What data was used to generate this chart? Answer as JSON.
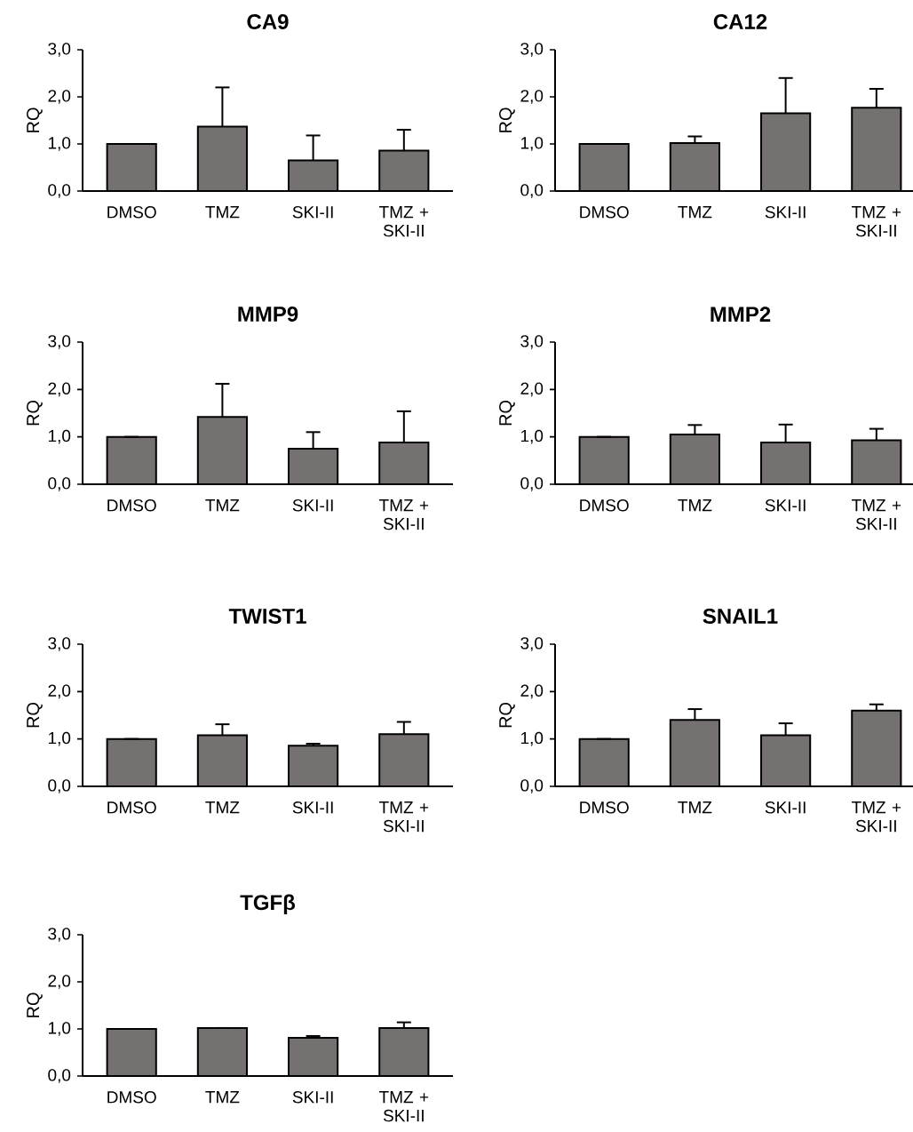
{
  "chart_data": [
    {
      "type": "bar",
      "title": "CA9",
      "ylabel": "RQ",
      "categories": [
        "DMSO",
        "TMZ",
        "SKI-II",
        "TMZ + SKI-II"
      ],
      "values": [
        1.0,
        1.37,
        0.65,
        0.86
      ],
      "errors": [
        null,
        0.83,
        0.53,
        0.44
      ],
      "color": "#767171",
      "ylim": [
        0,
        3
      ],
      "yticks": [
        {
          "value": 0,
          "label": "0,0"
        },
        {
          "value": 1,
          "label": "1,0"
        },
        {
          "value": 2,
          "label": "2,0"
        },
        {
          "value": 3,
          "label": "3,0"
        }
      ]
    },
    {
      "type": "bar",
      "title": "CA12",
      "ylabel": "RQ",
      "categories": [
        "DMSO",
        "TMZ",
        "SKI-II",
        "TMZ + SKI-II"
      ],
      "values": [
        1.0,
        1.02,
        1.65,
        1.77
      ],
      "errors": [
        null,
        0.14,
        0.75,
        0.4
      ],
      "color": "#767171",
      "ylim": [
        0,
        3
      ],
      "yticks": [
        {
          "value": 0,
          "label": "0,0"
        },
        {
          "value": 1,
          "label": "1,0"
        },
        {
          "value": 2,
          "label": "2,0"
        },
        {
          "value": 3,
          "label": "3,0"
        }
      ]
    },
    {
      "type": "bar",
      "title": "MMP9",
      "ylabel": "RQ",
      "categories": [
        "DMSO",
        "TMZ",
        "SKI-II",
        "TMZ + SKI-II"
      ],
      "values": [
        1.0,
        1.42,
        0.75,
        0.88
      ],
      "errors": [
        null,
        0.7,
        0.35,
        0.66
      ],
      "color": "#767171",
      "ylim": [
        0,
        3
      ],
      "yticks": [
        {
          "value": 0,
          "label": "0,0"
        },
        {
          "value": 1,
          "label": "1,0"
        },
        {
          "value": 2,
          "label": "2,0"
        },
        {
          "value": 3,
          "label": "3,0"
        }
      ]
    },
    {
      "type": "bar",
      "title": "MMP2",
      "ylabel": "RQ",
      "categories": [
        "DMSO",
        "TMZ",
        "SKI-II",
        "TMZ + SKI-II"
      ],
      "values": [
        1.0,
        1.05,
        0.88,
        0.93
      ],
      "errors": [
        null,
        0.2,
        0.38,
        0.24
      ],
      "color": "#767171",
      "ylim": [
        0,
        3
      ],
      "yticks": [
        {
          "value": 0,
          "label": "0,0"
        },
        {
          "value": 1,
          "label": "1,0"
        },
        {
          "value": 2,
          "label": "2,0"
        },
        {
          "value": 3,
          "label": "3,0"
        }
      ]
    },
    {
      "type": "bar",
      "title": "TWIST1",
      "ylabel": "RQ",
      "categories": [
        "DMSO",
        "TMZ",
        "SKI-II",
        "TMZ + SKI-II"
      ],
      "values": [
        1.0,
        1.08,
        0.86,
        1.1
      ],
      "errors": [
        null,
        0.23,
        0.04,
        0.26
      ],
      "color": "#767171",
      "ylim": [
        0,
        3
      ],
      "yticks": [
        {
          "value": 0,
          "label": "0,0"
        },
        {
          "value": 1,
          "label": "1,0"
        },
        {
          "value": 2,
          "label": "2,0"
        },
        {
          "value": 3,
          "label": "3,0"
        }
      ]
    },
    {
      "type": "bar",
      "title": "SNAIL1",
      "ylabel": "RQ",
      "categories": [
        "DMSO",
        "TMZ",
        "SKI-II",
        "TMZ + SKI-II"
      ],
      "values": [
        1.0,
        1.4,
        1.08,
        1.6
      ],
      "errors": [
        null,
        0.23,
        0.25,
        0.13
      ],
      "color": "#767171",
      "ylim": [
        0,
        3
      ],
      "yticks": [
        {
          "value": 0,
          "label": "0,0"
        },
        {
          "value": 1,
          "label": "1,0"
        },
        {
          "value": 2,
          "label": "2,0"
        },
        {
          "value": 3,
          "label": "3,0"
        }
      ]
    },
    {
      "type": "bar",
      "title": "TGFβ",
      "ylabel": "RQ",
      "categories": [
        "DMSO",
        "TMZ",
        "SKI-II",
        "TMZ + SKI-II"
      ],
      "values": [
        1.0,
        1.02,
        0.81,
        1.02
      ],
      "errors": [
        null,
        null,
        0.04,
        0.12
      ],
      "color": "#767171",
      "ylim": [
        0,
        3
      ],
      "yticks": [
        {
          "value": 0,
          "label": "0,0"
        },
        {
          "value": 1,
          "label": "1,0"
        },
        {
          "value": 2,
          "label": "2,0"
        },
        {
          "value": 3,
          "label": "3,0"
        }
      ]
    }
  ]
}
